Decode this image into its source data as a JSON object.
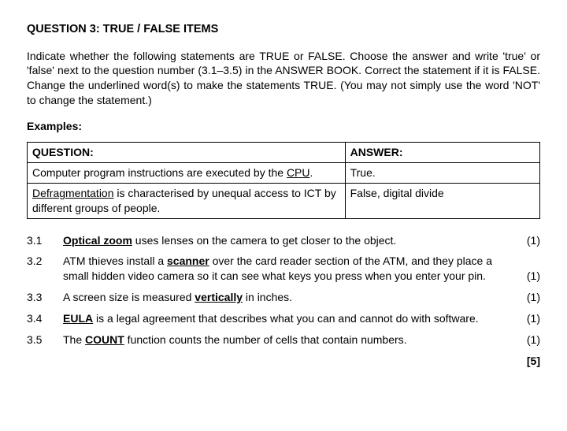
{
  "title": "QUESTION 3: TRUE / FALSE ITEMS",
  "instructions": "Indicate whether the following statements are TRUE or FALSE. Choose the answer and write 'true' or 'false' next to the question number (3.1–3.5) in the ANSWER BOOK. Correct the statement if it is FALSE. Change the underlined word(s) to make the statements TRUE. (You may not simply use the word 'NOT' to change the statement.)",
  "examples_label": "Examples:",
  "table": {
    "header_question": "QUESTION:",
    "header_answer": "ANSWER:",
    "rows": [
      {
        "q_pre": "Computer program instructions are executed by the ",
        "q_underline": "CPU",
        "q_post": ".",
        "answer": "True."
      },
      {
        "q_pre": "",
        "q_underline": "Defragmentation",
        "q_post": " is characterised by unequal access to ICT by different groups of people.",
        "answer": "False, digital divide"
      }
    ]
  },
  "questions": [
    {
      "num": "3.1",
      "pre": "",
      "underline": "Optical zoom",
      "underline_bold": true,
      "post": " uses lenses on the camera to get closer to the object.",
      "mark": "(1)"
    },
    {
      "num": "3.2",
      "pre": "ATM thieves install a ",
      "underline": "scanner",
      "underline_bold": true,
      "post": " over the card reader section of the ATM, and they place a small hidden video camera so it can see what keys you press when you enter your pin.",
      "mark": "(1)"
    },
    {
      "num": "3.3",
      "pre": "A screen size is measured ",
      "underline": "vertically",
      "underline_bold": true,
      "post": " in inches.",
      "mark": "(1)"
    },
    {
      "num": "3.4",
      "pre": "",
      "underline": "EULA",
      "underline_bold": true,
      "post": " is a legal agreement that describes what you can and cannot do with software.",
      "mark": "(1)"
    },
    {
      "num": "3.5",
      "pre": "The ",
      "underline": "COUNT",
      "underline_bold": true,
      "post": " function counts the number of cells that contain numbers.",
      "mark": "(1)"
    }
  ],
  "total": "[5]"
}
